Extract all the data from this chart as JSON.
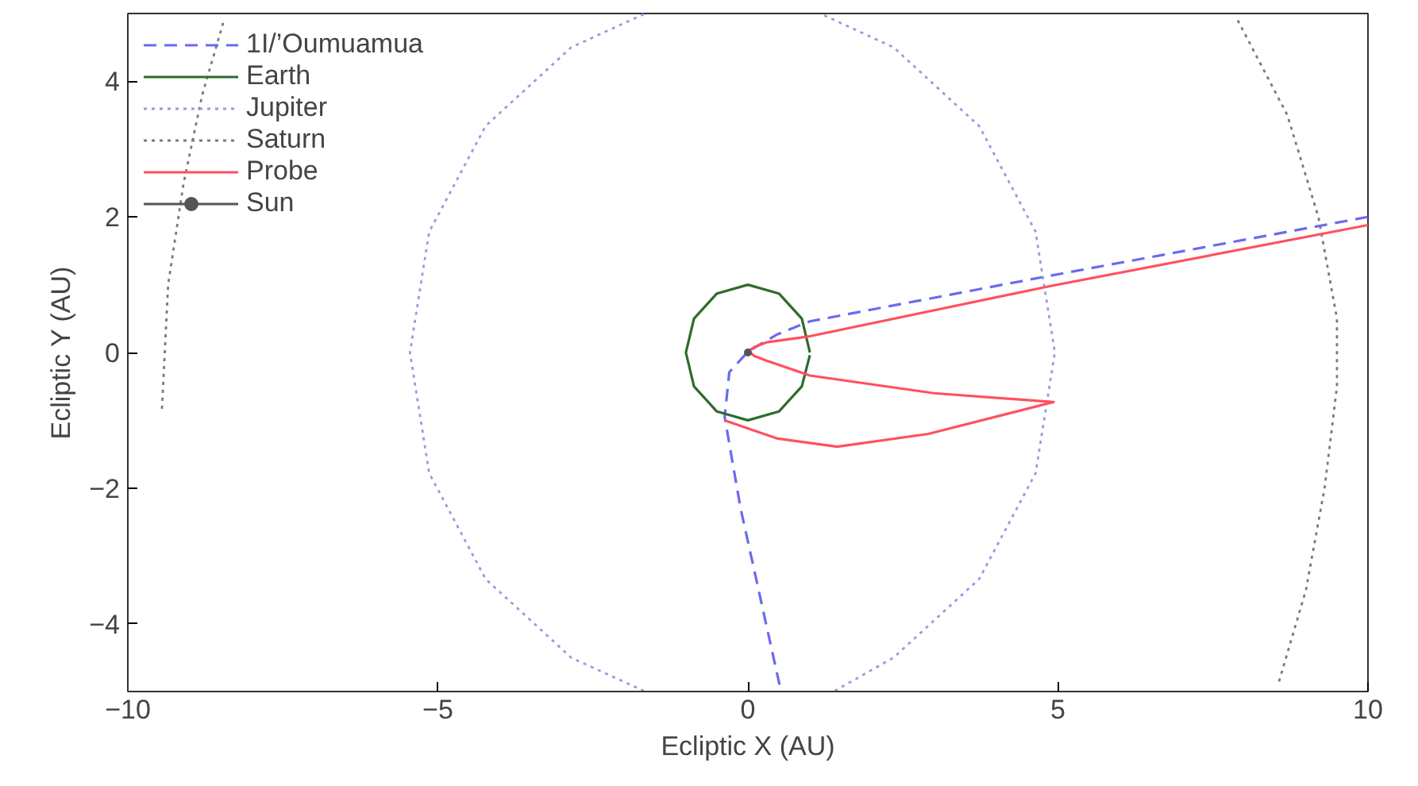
{
  "chart_data": {
    "type": "line",
    "xlabel": "Ecliptic X (AU)",
    "ylabel": "Ecliptic Y (AU)",
    "xlim": [
      -10,
      10
    ],
    "ylim": [
      -5,
      5
    ],
    "xticks": [
      {
        "value": -10,
        "label": "−10"
      },
      {
        "value": -5,
        "label": "−5"
      },
      0,
      5,
      10
    ],
    "yticks": [
      {
        "value": -4,
        "label": "−4"
      },
      {
        "value": -2,
        "label": "−2"
      },
      0,
      2,
      4
    ],
    "grid": false,
    "legend": "top left",
    "marker": "none",
    "series": [
      {
        "name": "1I/’Oumuamua",
        "color": "#6a6af0",
        "line_style": "dashed",
        "x": [
          0.51,
          -0.12,
          -0.375,
          -0.3,
          0.01,
          0.48,
          1.0,
          4.8,
          10
        ],
        "values": [
          -4.9,
          -2.29,
          -0.95,
          -0.29,
          0.02,
          0.27,
          0.46,
          1.12,
          2.0
        ]
      },
      {
        "name": "Earth",
        "color": "#2e6b2e",
        "line_style": "solid",
        "x": [
          1,
          0.87,
          0.5,
          0,
          -0.5,
          -0.87,
          -1,
          -0.87,
          -0.5,
          0,
          0.5,
          0.87,
          0.999
        ],
        "values": [
          0,
          0.5,
          0.87,
          1,
          0.87,
          0.5,
          0,
          -0.5,
          -0.87,
          -1,
          -0.87,
          -0.5,
          -0.04
        ]
      },
      {
        "name": "Jupiter",
        "color": "#9a9ae0",
        "line_style": "dotted",
        "x": [
          1.4,
          2.35,
          3.73,
          4.64,
          4.95,
          4.64,
          3.73,
          2.35,
          1.19,
          null,
          -1.68,
          -2.85,
          -4.23,
          -5.14,
          -5.45,
          -5.14,
          -4.23,
          -2.85,
          -1.68
        ],
        "values": [
          -4.99,
          -4.5,
          -3.34,
          -1.78,
          0,
          1.78,
          3.34,
          4.5,
          4.99,
          null,
          4.99,
          4.5,
          3.34,
          1.78,
          0,
          -1.78,
          -3.34,
          -4.5,
          -4.99
        ]
      },
      {
        "name": "Saturn",
        "color": "#7a7a7a",
        "line_style": "dotted",
        "x": [
          -9.45,
          -9.35,
          -9.1,
          -8.8,
          -8.45,
          null,
          7.9,
          8.7,
          9.2,
          9.5,
          9.5,
          9.3,
          9.0,
          8.55
        ],
        "values": [
          -0.83,
          1,
          2.5,
          3.8,
          4.9,
          null,
          4.9,
          3.5,
          2,
          0.5,
          -0.5,
          -2,
          -3.5,
          -4.9
        ]
      },
      {
        "name": "Probe",
        "color": "#ff5060",
        "line_style": "solid",
        "x": [
          -0.375,
          0.48,
          1.44,
          2.91,
          4.2,
          4.93,
          3.0,
          1.0,
          0.3,
          0.1,
          0.01,
          0.1,
          0.3,
          1.0,
          4.88,
          10
        ],
        "values": [
          -1.0,
          -1.27,
          -1.39,
          -1.2,
          -0.9,
          -0.73,
          -0.6,
          -0.34,
          -0.12,
          -0.05,
          0.02,
          0.08,
          0.15,
          0.24,
          0.98,
          1.88
        ]
      },
      {
        "name": "Sun",
        "color": "#555555",
        "line_style": "solid",
        "marker": "circle",
        "x": [
          0
        ],
        "values": [
          0
        ]
      }
    ]
  }
}
